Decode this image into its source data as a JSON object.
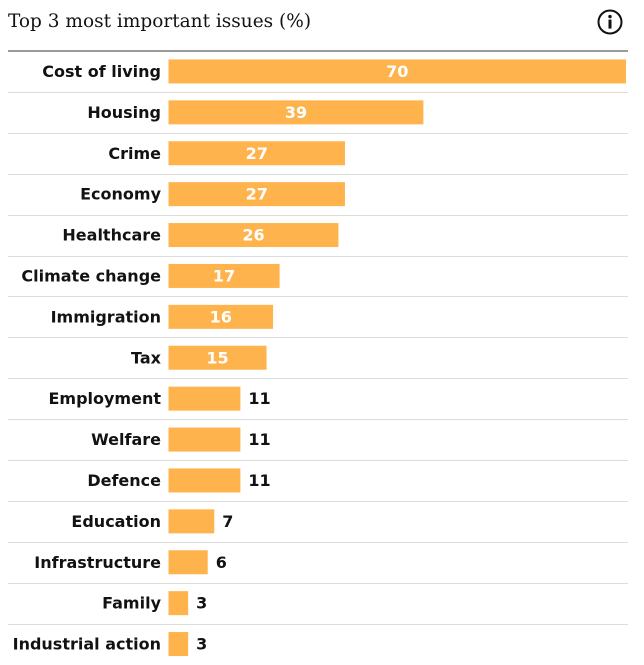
{
  "colors": {
    "bar": "#ffb34d",
    "rule_strong": "#9a9a9a",
    "rule_light": "#dcdcdc",
    "text": "#121212",
    "bar_label_inside": "#ffffff"
  },
  "header": {
    "title": "Top 3 most important issues (%)",
    "info_icon": "info-icon"
  },
  "chart_data": {
    "type": "bar",
    "orientation": "horizontal",
    "title": "Top 3 most important issues (%)",
    "xlabel": "",
    "ylabel": "",
    "xlim": [
      0,
      70
    ],
    "categories": [
      "Cost of living",
      "Housing",
      "Crime",
      "Economy",
      "Healthcare",
      "Climate change",
      "Immigration",
      "Tax",
      "Employment",
      "Welfare",
      "Defence",
      "Education",
      "Infrastructure",
      "Family",
      "Industrial action"
    ],
    "values": [
      70,
      39,
      27,
      27,
      26,
      17,
      16,
      15,
      11,
      11,
      11,
      7,
      6,
      3,
      3
    ],
    "data_labels": [
      "70",
      "39",
      "27",
      "27",
      "26",
      "17",
      "16",
      "15",
      "11",
      "11",
      "11",
      "7",
      "6",
      "3",
      "3"
    ]
  }
}
